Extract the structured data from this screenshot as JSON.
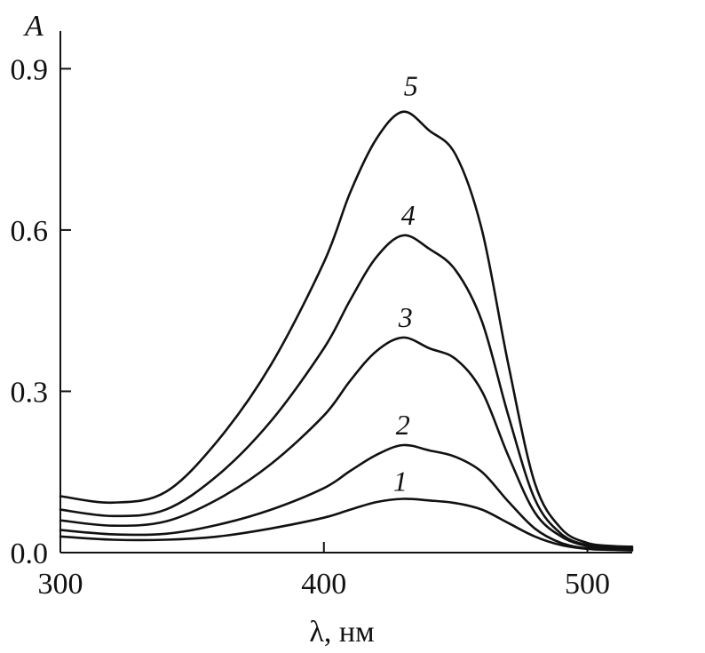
{
  "chart_data": {
    "type": "line",
    "xlabel": "λ, нм",
    "ylabel": "A",
    "xlim": [
      300,
      517
    ],
    "ylim": [
      0,
      0.97
    ],
    "xticks": [
      300,
      400,
      500
    ],
    "xtick_labels": [
      "300",
      "400",
      "500"
    ],
    "yticks": [
      0,
      0.3,
      0.6,
      0.9
    ],
    "ytick_labels": [
      "0.0",
      "0.3",
      "0.6",
      "0.9"
    ],
    "grid": false,
    "legend": "none",
    "series": [
      {
        "name": "1",
        "x": [
          300,
          320,
          340,
          360,
          380,
          400,
          410,
          420,
          430,
          440,
          450,
          460,
          470,
          480,
          490,
          500,
          510,
          517
        ],
        "y": [
          0.03,
          0.024,
          0.024,
          0.03,
          0.045,
          0.065,
          0.08,
          0.094,
          0.1,
          0.097,
          0.092,
          0.08,
          0.055,
          0.03,
          0.014,
          0.007,
          0.005,
          0.004
        ]
      },
      {
        "name": "2",
        "x": [
          300,
          320,
          340,
          360,
          380,
          400,
          410,
          420,
          430,
          440,
          450,
          460,
          470,
          480,
          490,
          500,
          510,
          517
        ],
        "y": [
          0.042,
          0.034,
          0.035,
          0.052,
          0.08,
          0.12,
          0.152,
          0.182,
          0.2,
          0.19,
          0.178,
          0.15,
          0.095,
          0.045,
          0.018,
          0.008,
          0.006,
          0.005
        ]
      },
      {
        "name": "3",
        "x": [
          300,
          320,
          340,
          360,
          380,
          400,
          410,
          420,
          430,
          440,
          450,
          460,
          470,
          480,
          490,
          500,
          510,
          517
        ],
        "y": [
          0.06,
          0.05,
          0.058,
          0.1,
          0.165,
          0.255,
          0.32,
          0.375,
          0.4,
          0.38,
          0.36,
          0.3,
          0.18,
          0.075,
          0.03,
          0.012,
          0.008,
          0.007
        ]
      },
      {
        "name": "4",
        "x": [
          300,
          320,
          340,
          360,
          380,
          400,
          410,
          420,
          430,
          440,
          450,
          460,
          470,
          480,
          490,
          500,
          510,
          517
        ],
        "y": [
          0.08,
          0.068,
          0.08,
          0.145,
          0.245,
          0.38,
          0.47,
          0.55,
          0.59,
          0.565,
          0.525,
          0.43,
          0.255,
          0.1,
          0.035,
          0.014,
          0.01,
          0.009
        ]
      },
      {
        "name": "5",
        "x": [
          300,
          320,
          340,
          360,
          380,
          400,
          410,
          420,
          430,
          440,
          450,
          460,
          470,
          480,
          490,
          500,
          510,
          517
        ],
        "y": [
          0.105,
          0.093,
          0.113,
          0.21,
          0.35,
          0.54,
          0.67,
          0.77,
          0.82,
          0.785,
          0.74,
          0.6,
          0.35,
          0.13,
          0.045,
          0.018,
          0.012,
          0.011
        ]
      }
    ],
    "series_label_positions": [
      {
        "name": "1",
        "x": 429,
        "y": 0.115
      },
      {
        "name": "2",
        "x": 430,
        "y": 0.22
      },
      {
        "name": "3",
        "x": 431,
        "y": 0.42
      },
      {
        "name": "4",
        "x": 432,
        "y": 0.61
      },
      {
        "name": "5",
        "x": 433,
        "y": 0.85
      }
    ]
  }
}
